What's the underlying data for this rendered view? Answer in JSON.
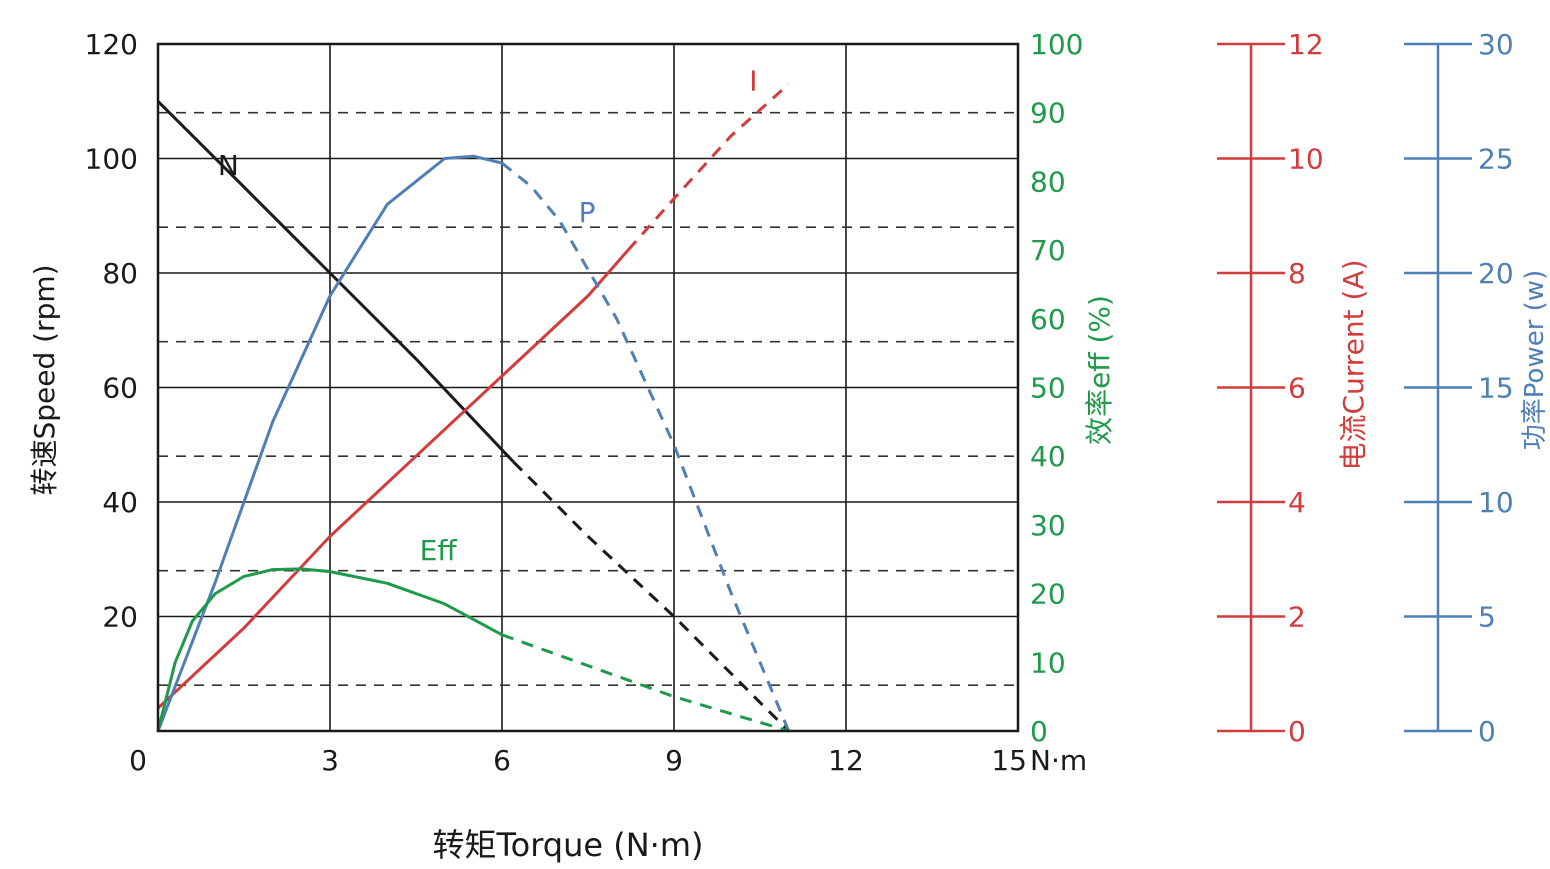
{
  "chart_data": {
    "type": "line",
    "title": "",
    "xlabel": "转矩Torque (N·m)",
    "x_unit": "N·m",
    "xlim": [
      0,
      15
    ],
    "x_ticks": [
      0,
      3,
      6,
      9,
      12,
      15
    ],
    "grid": true,
    "axes": {
      "speed": {
        "label": "转速Speed (rpm)",
        "range": [
          0,
          120
        ],
        "ticks": [
          20,
          40,
          60,
          80,
          100,
          120
        ],
        "color": "#1a1a1a"
      },
      "eff": {
        "label": "效率eff (%)",
        "range": [
          0,
          100
        ],
        "ticks": [
          0,
          10,
          20,
          30,
          40,
          50,
          60,
          70,
          80,
          90,
          100
        ],
        "color": "#1e9a4a"
      },
      "current": {
        "label": "电流Current (A)",
        "range": [
          0,
          12
        ],
        "ticks": [
          0,
          2,
          4,
          6,
          8,
          10,
          12
        ],
        "color": "#d23c3c"
      },
      "power": {
        "label": "功率Power (w)",
        "range": [
          0,
          30
        ],
        "ticks": [
          0,
          5,
          10,
          15,
          20,
          25,
          30
        ],
        "color": "#4f7fb5"
      }
    },
    "series": [
      {
        "name": "N",
        "axis": "speed",
        "color": "#1a1a1a",
        "solid_until": 6.2,
        "x": [
          0,
          1.5,
          3,
          4.5,
          6.2,
          7.5,
          9,
          10.5,
          11
        ],
        "values": [
          110,
          95,
          80,
          65,
          47,
          34,
          20,
          5,
          0
        ]
      },
      {
        "name": "I",
        "axis": "current",
        "color": "#d23c3c",
        "solid_until": 8.2,
        "x": [
          0,
          1.5,
          3,
          4.5,
          6,
          7.5,
          8.2,
          9,
          10,
          11
        ],
        "values": [
          0.4,
          1.8,
          3.4,
          4.8,
          6.2,
          7.6,
          8.4,
          9.3,
          10.4,
          11.3
        ]
      },
      {
        "name": "P",
        "axis": "power",
        "color": "#4f7fb5",
        "solid_until": 6.3,
        "x": [
          0,
          1,
          2,
          3,
          4,
          5,
          5.5,
          6,
          6.5,
          7,
          8,
          9,
          10,
          11
        ],
        "values": [
          0,
          6.5,
          13.5,
          19,
          23,
          25,
          25.1,
          24.8,
          23.8,
          22.3,
          18,
          12.5,
          6,
          0
        ]
      },
      {
        "name": "Eff",
        "axis": "eff",
        "color": "#1e9a4a",
        "solid_until": 6,
        "x": [
          0,
          0.3,
          0.6,
          1,
          1.5,
          2,
          2.5,
          3,
          4,
          5,
          6,
          7,
          8,
          9,
          10,
          11
        ],
        "values": [
          0,
          10,
          16,
          20,
          22.5,
          23.5,
          23.6,
          23.2,
          21.5,
          18.5,
          14,
          11,
          8,
          5,
          2.5,
          0
        ]
      }
    ],
    "annotations": [
      {
        "text": "N",
        "series": "N"
      },
      {
        "text": "I",
        "series": "I"
      },
      {
        "text": "P",
        "series": "P"
      },
      {
        "text": "Eff",
        "series": "Eff"
      }
    ]
  }
}
